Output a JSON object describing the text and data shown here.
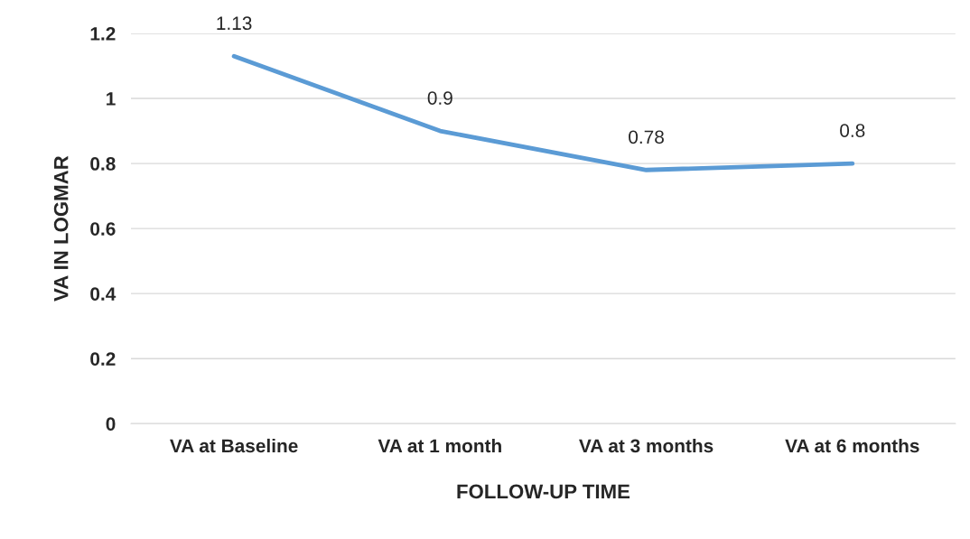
{
  "chart_data": {
    "type": "line",
    "categories": [
      "VA at Baseline",
      "VA at 1 month",
      "VA at 3 months",
      "VA at 6 months"
    ],
    "values": [
      1.13,
      0.9,
      0.78,
      0.8
    ],
    "color": "#5b9bd5",
    "xlabel": "FOLLOW-UP TIME",
    "ylabel": "VA IN LOGMAR",
    "ylim": [
      0,
      1.2
    ],
    "yticks": [
      0,
      0.2,
      0.4,
      0.6,
      0.8,
      1,
      1.2
    ],
    "grid": "y",
    "data_labels": true,
    "legend": false,
    "marker": "none",
    "line_style": "solid"
  }
}
